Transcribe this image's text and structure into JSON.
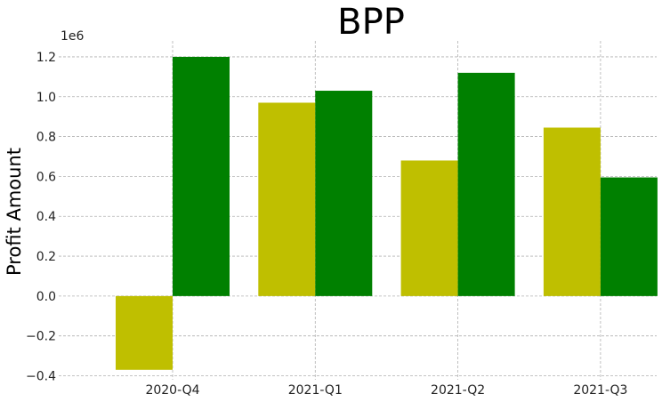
{
  "chart_data": {
    "type": "bar",
    "title": "BPP",
    "ylabel": "Profit Amount",
    "xlabel": "",
    "offset_label": "1e6",
    "categories": [
      "2020-Q4",
      "2021-Q1",
      "2021-Q2",
      "2021-Q3"
    ],
    "series": [
      {
        "values": [
          -0.37,
          0.97,
          0.68,
          0.845
        ],
        "color": "#bfbf00"
      },
      {
        "values": [
          1.2,
          1.03,
          1.12,
          0.595
        ],
        "color": "#008000"
      }
    ],
    "ylim": [
      -0.42,
      1.28
    ],
    "yticks": [
      -0.4,
      -0.2,
      0.0,
      0.2,
      0.4,
      0.6,
      0.8,
      1.0,
      1.2
    ],
    "ytick_labels": [
      "−0.4",
      "−0.2",
      "0.0",
      "0.2",
      "0.4",
      "0.6",
      "0.8",
      "1.0",
      "1.2"
    ],
    "grid": true
  }
}
